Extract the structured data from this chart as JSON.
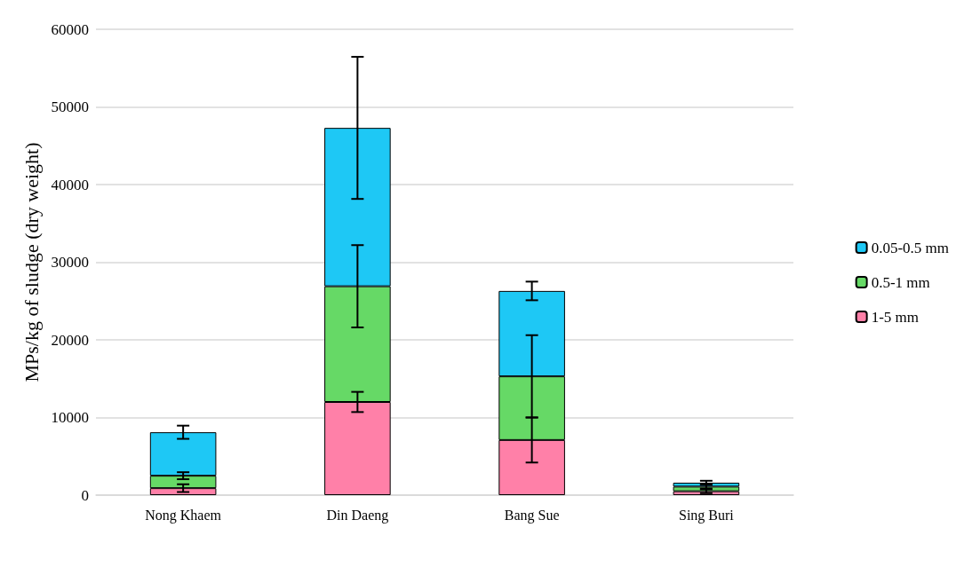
{
  "chart_data": {
    "type": "bar",
    "stacked": true,
    "ylabel": "MPs/kg of sludge (dry weight)",
    "categories": [
      "Nong Khaem",
      "Din Daeng",
      "Bang Sue",
      "Sing Buri"
    ],
    "series": [
      {
        "name": "1-5 mm",
        "color": "#ff80a8",
        "values": [
          900,
          12000,
          7100,
          500
        ],
        "errors": [
          500,
          1300,
          2900,
          250
        ]
      },
      {
        "name": "0.5-1 mm",
        "color": "#66d966",
        "values": [
          1600,
          14900,
          8200,
          600
        ],
        "errors": [
          450,
          5300,
          5300,
          250
        ]
      },
      {
        "name": "0.05-0.5 mm",
        "color": "#1ec8f5",
        "values": [
          5600,
          20400,
          11000,
          500
        ],
        "errors": [
          850,
          9150,
          1200,
          250
        ]
      }
    ],
    "ylim": [
      0,
      60000
    ],
    "yticks": [
      0,
      10000,
      20000,
      30000,
      40000,
      50000,
      60000
    ],
    "grid": "y",
    "legend": "right"
  }
}
